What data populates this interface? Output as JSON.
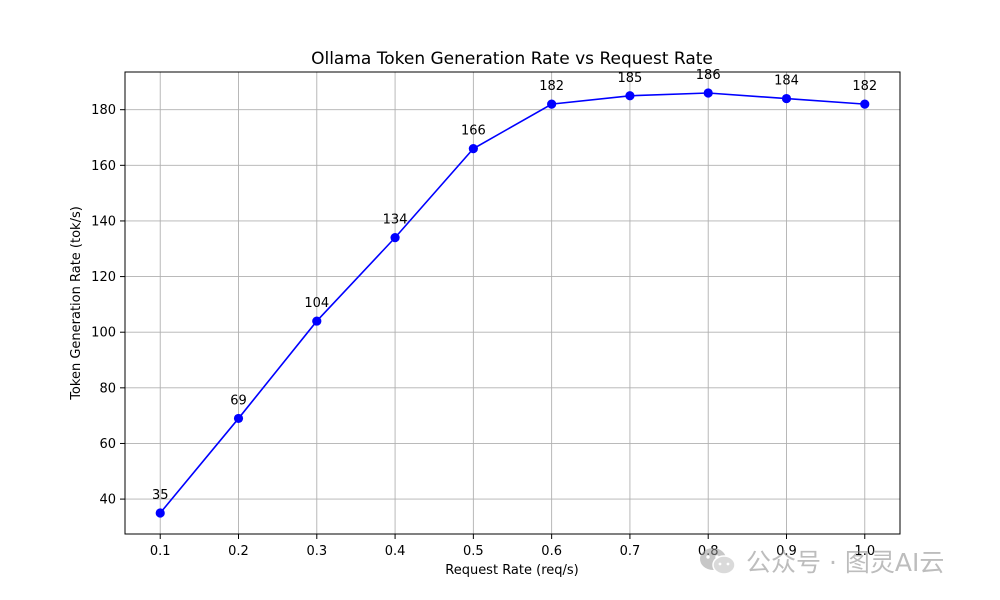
{
  "chart_data": {
    "type": "line",
    "title": "Ollama Token Generation Rate vs Request Rate",
    "xlabel": "Request Rate (req/s)",
    "ylabel": "Token Generation Rate (tok/s)",
    "x": [
      0.1,
      0.2,
      0.3,
      0.4,
      0.5,
      0.6,
      0.7,
      0.8,
      0.9,
      1.0
    ],
    "x_tick_labels": [
      "0.1",
      "0.2",
      "0.3",
      "0.4",
      "0.5",
      "0.6",
      "0.7",
      "0.8",
      "0.9",
      "1.0"
    ],
    "y_ticks": [
      40,
      60,
      80,
      100,
      120,
      140,
      160,
      180
    ],
    "y_tick_labels": [
      "40",
      "60",
      "80",
      "100",
      "120",
      "140",
      "160",
      "180"
    ],
    "xlim": [
      0.055,
      1.045
    ],
    "ylim": [
      27.45,
      193.55
    ],
    "grid": true,
    "series": [
      {
        "values": [
          35,
          69,
          104,
          134,
          166,
          182,
          185,
          186,
          184,
          182
        ],
        "labels": [
          "35",
          "69",
          "104",
          "134",
          "166",
          "182",
          "185",
          "186",
          "184",
          "182"
        ],
        "color": "#0000ff",
        "marker": "circle"
      }
    ]
  },
  "watermark": {
    "text": "公众号 · 图灵AI云",
    "icon": "wechat-icon"
  }
}
